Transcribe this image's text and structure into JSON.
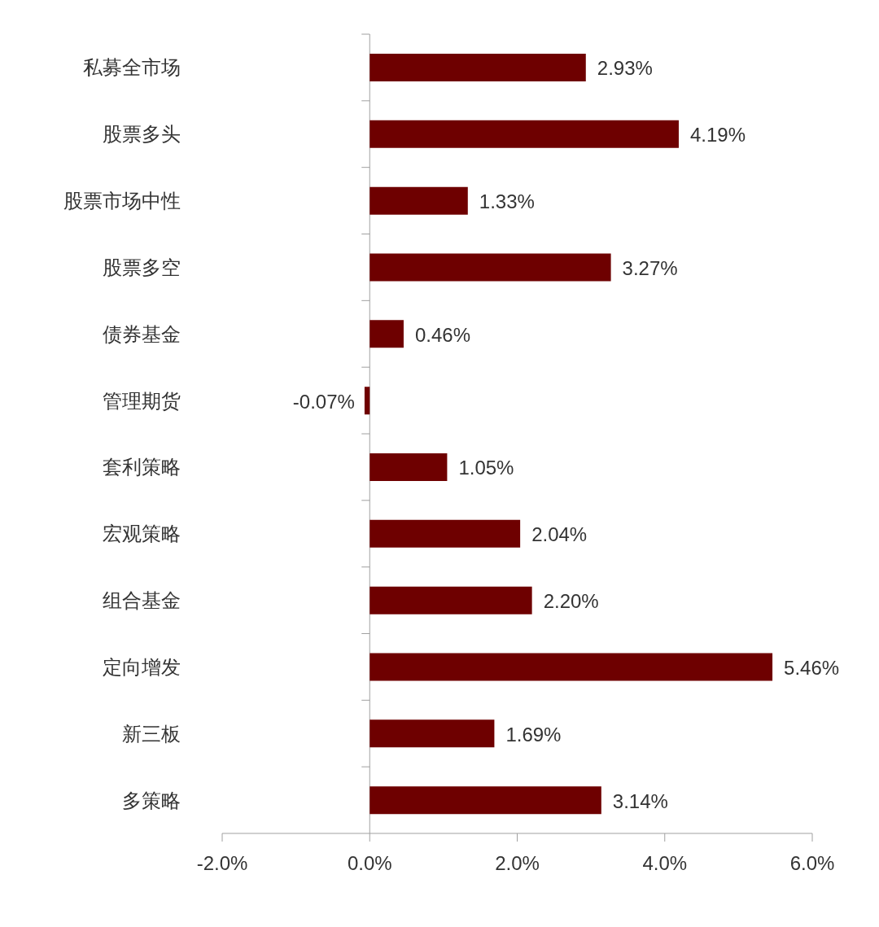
{
  "chart_data": {
    "type": "bar",
    "orientation": "horizontal",
    "categories": [
      "私募全市场",
      "股票多头",
      "股票市场中性",
      "股票多空",
      "债券基金",
      "管理期货",
      "套利策略",
      "宏观策略",
      "组合基金",
      "定向增发",
      "新三板",
      "多策略"
    ],
    "values": [
      2.93,
      4.19,
      1.33,
      3.27,
      0.46,
      -0.07,
      1.05,
      2.04,
      2.2,
      5.46,
      1.69,
      3.14
    ],
    "value_labels": [
      "2.93%",
      "4.19%",
      "1.33%",
      "3.27%",
      "0.46%",
      "-0.07%",
      "1.05%",
      "2.04%",
      "2.20%",
      "5.46%",
      "1.69%",
      "3.14%"
    ],
    "color": "#6e0000",
    "xlim": [
      -2,
      6
    ],
    "xticks": [
      {
        "value": -2,
        "label": "-2.0%"
      },
      {
        "value": 0,
        "label": "0.0%"
      },
      {
        "value": 2,
        "label": "2.0%"
      },
      {
        "value": 4,
        "label": "4.0%"
      },
      {
        "value": 6,
        "label": "6.0%"
      }
    ]
  }
}
